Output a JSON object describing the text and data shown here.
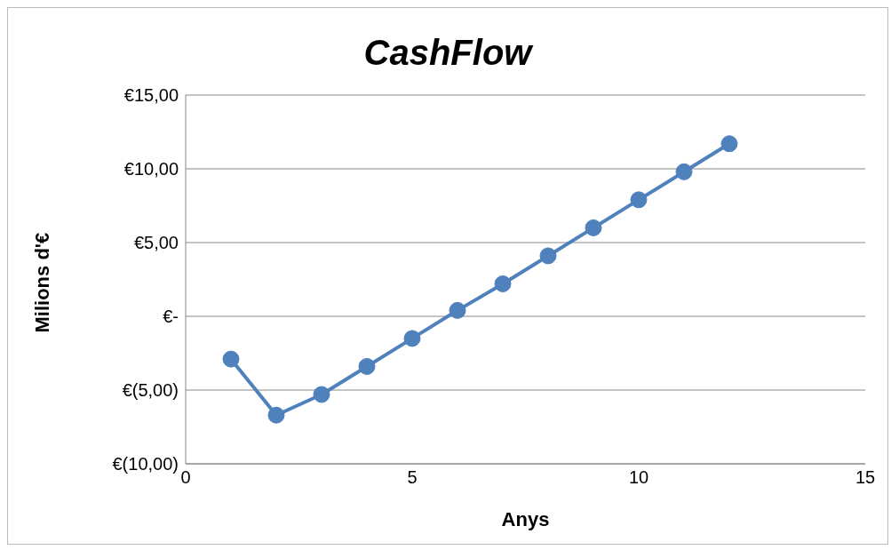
{
  "chart_data": {
    "type": "line",
    "title": "CashFlow",
    "xlabel": "Anys",
    "ylabel": "Milions d'€",
    "x": [
      1,
      2,
      3,
      4,
      5,
      6,
      7,
      8,
      9,
      10,
      11,
      12
    ],
    "series": [
      {
        "color": "#4f81bd",
        "values": [
          -2.9,
          -6.7,
          -5.3,
          -3.4,
          -1.5,
          0.4,
          2.2,
          4.1,
          6.0,
          7.9,
          9.8,
          11.7
        ]
      }
    ],
    "xlim": [
      0,
      15
    ],
    "xticks": [
      0,
      5,
      10,
      15
    ],
    "ylim": [
      -10,
      15
    ],
    "yticks": [
      {
        "value": -10,
        "label": "€(10,00)"
      },
      {
        "value": -5,
        "label": "€(5,00)"
      },
      {
        "value": 0,
        "label": "€-"
      },
      {
        "value": 5,
        "label": "€5,00"
      },
      {
        "value": 10,
        "label": "€10,00"
      },
      {
        "value": 15,
        "label": "€15,00"
      }
    ],
    "grid": "y",
    "marker": "circle",
    "line_style": "solid",
    "legend": false
  }
}
